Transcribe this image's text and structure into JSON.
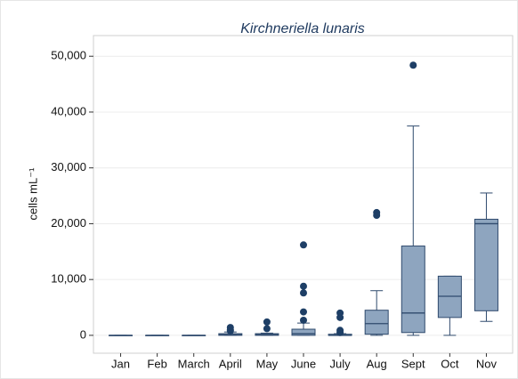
{
  "chart_data": {
    "type": "box",
    "title": "Kirchneriella lunaris",
    "ylabel": "cells mL⁻¹",
    "categories": [
      "Jan",
      "Feb",
      "March",
      "April",
      "May",
      "June",
      "July",
      "Aug",
      "Sept",
      "Oct",
      "Nov"
    ],
    "boxes": [
      {
        "whislo": 0,
        "q1": 0,
        "med": 0,
        "q3": 0,
        "whishi": 0,
        "fliers": []
      },
      {
        "whislo": 0,
        "q1": 0,
        "med": 0,
        "q3": 0,
        "whishi": 0,
        "fliers": []
      },
      {
        "whislo": 0,
        "q1": 0,
        "med": 0,
        "q3": 0,
        "whishi": 0,
        "fliers": []
      },
      {
        "whislo": 0,
        "q1": 0,
        "med": 100,
        "q3": 300,
        "whishi": 600,
        "fliers": [
          1400,
          1000,
          800
        ]
      },
      {
        "whislo": 0,
        "q1": 0,
        "med": 100,
        "q3": 300,
        "whishi": 400,
        "fliers": [
          2400,
          1200
        ]
      },
      {
        "whislo": 0,
        "q1": 0,
        "med": 300,
        "q3": 1100,
        "whishi": 2200,
        "fliers": [
          16200,
          8800,
          7600,
          4200,
          2700
        ]
      },
      {
        "whislo": 0,
        "q1": 0,
        "med": 0,
        "q3": 200,
        "whishi": 300,
        "fliers": [
          4000,
          3200,
          900,
          500
        ]
      },
      {
        "whislo": 0,
        "q1": 200,
        "med": 2100,
        "q3": 4500,
        "whishi": 8000,
        "fliers": [
          22000,
          21500
        ]
      },
      {
        "whislo": 0,
        "q1": 500,
        "med": 4000,
        "q3": 16000,
        "whishi": 37500,
        "fliers": [
          48400
        ]
      },
      {
        "whislo": 0,
        "q1": 3200,
        "med": 7000,
        "q3": 10600,
        "whishi": 10600,
        "fliers": []
      },
      {
        "whislo": 2500,
        "q1": 4400,
        "med": 20000,
        "q3": 20800,
        "whishi": 25500,
        "fliers": []
      }
    ],
    "box_color": "#8ea5bf",
    "line_color": "#2f4a6d",
    "flier_color": "#1e3f66",
    "ylim": [
      -3200,
      53700
    ],
    "yticks": [
      0,
      {
        "value": 10000,
        "label": "10,000"
      },
      {
        "value": 20000,
        "label": "20,000"
      },
      {
        "value": 30000,
        "label": "30,000"
      },
      {
        "value": 40000,
        "label": "40,000"
      },
      {
        "value": 50000,
        "label": "50,000"
      }
    ],
    "grid": true
  }
}
